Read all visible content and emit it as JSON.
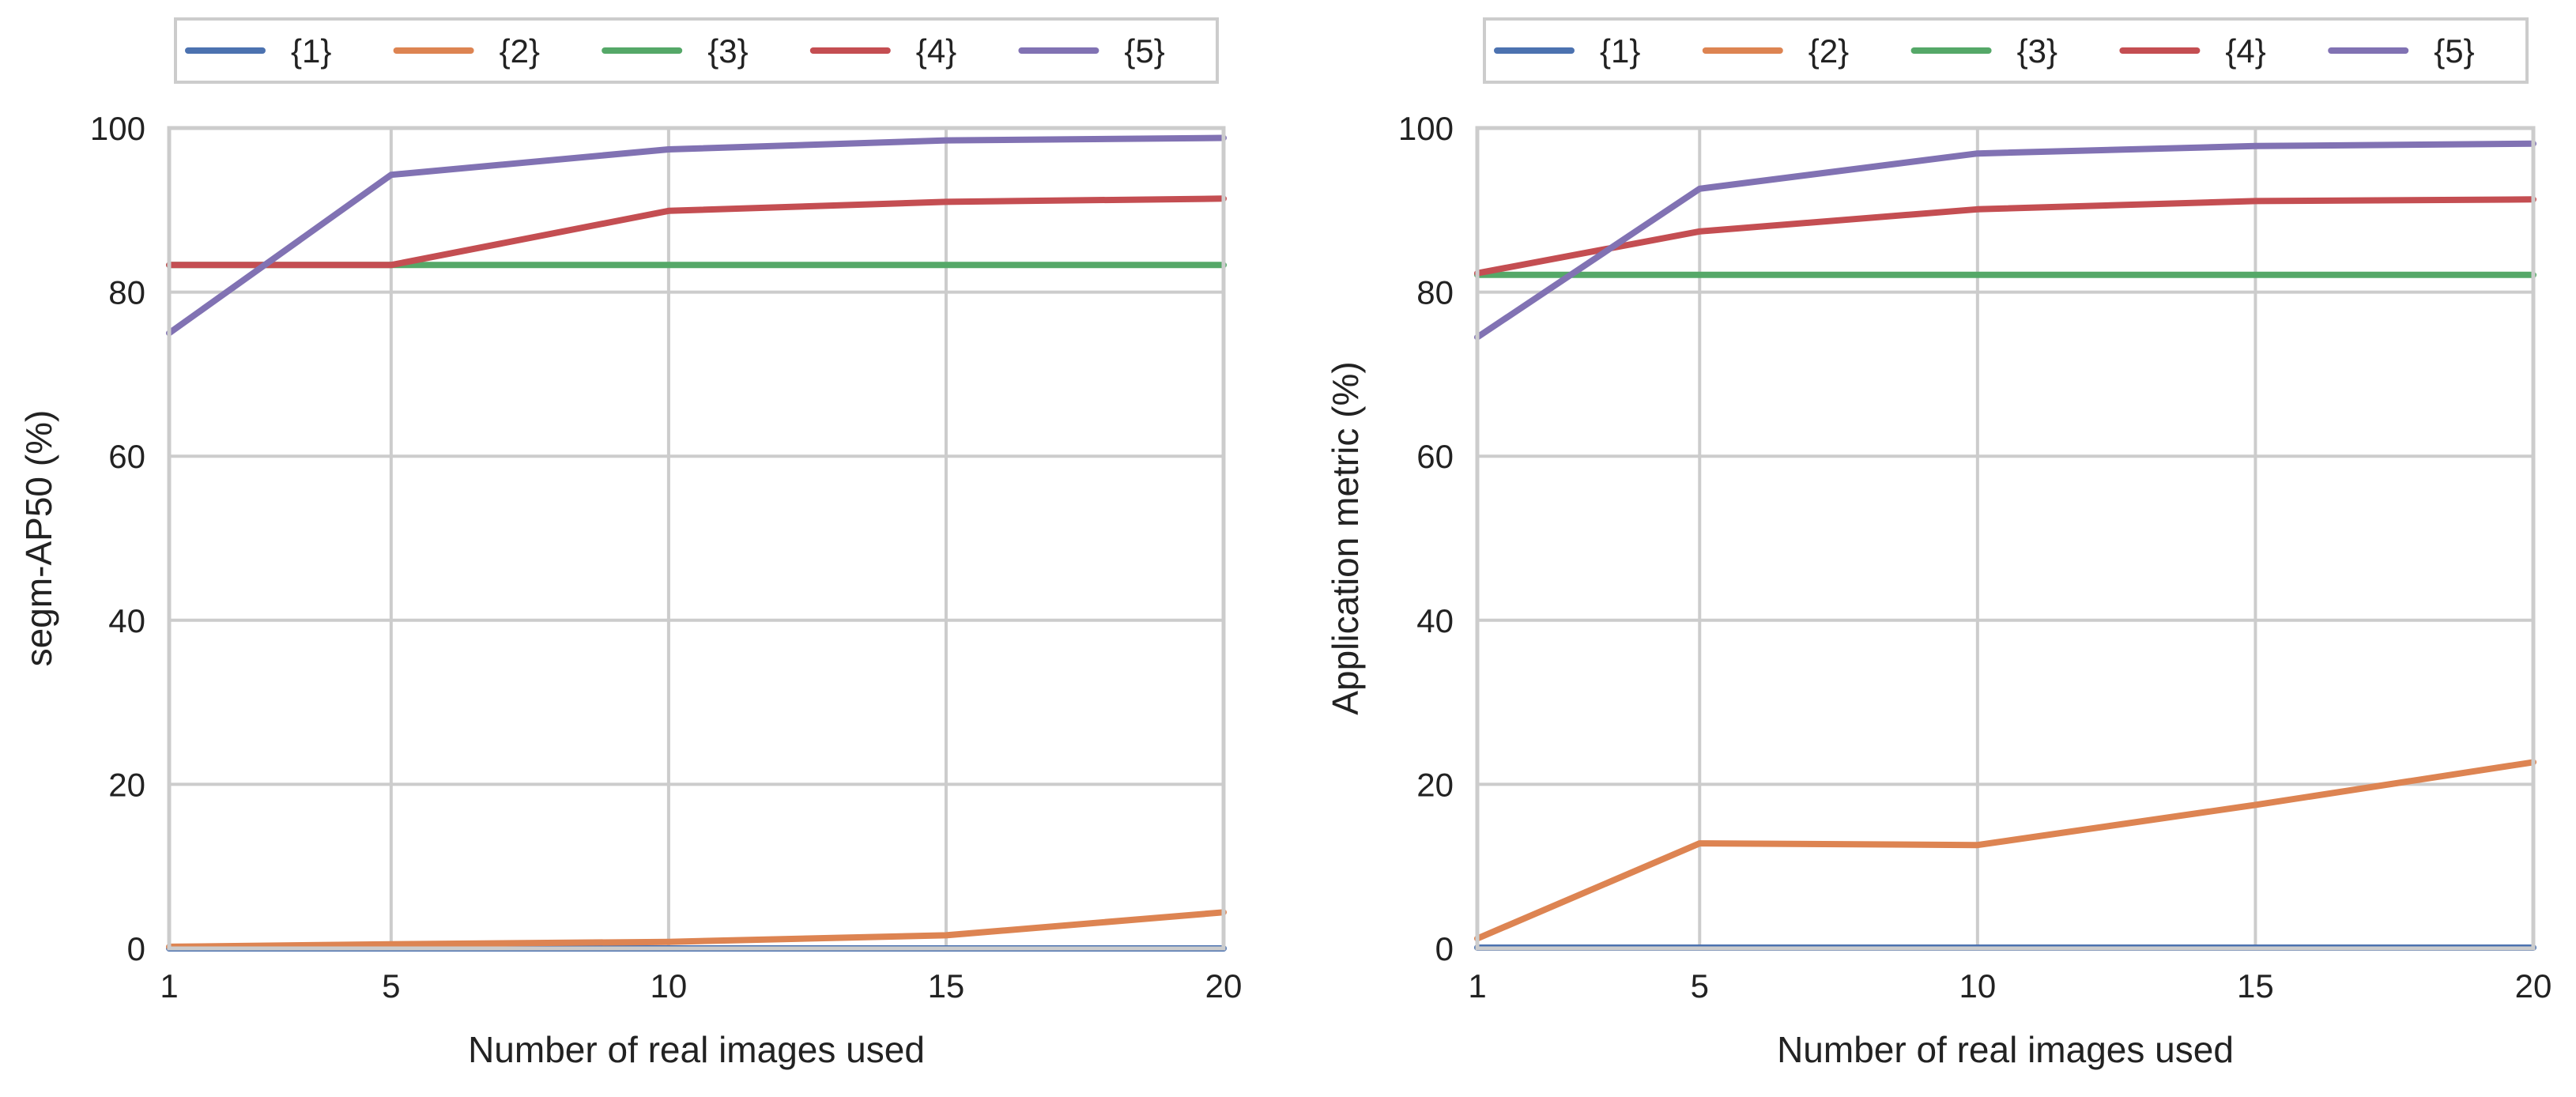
{
  "colors": {
    "series": [
      "#4c72b0",
      "#dd8452",
      "#55a868",
      "#c44e52",
      "#8172b3"
    ],
    "grid": "#cccccc",
    "frame": "#cccccc",
    "text": "#222222"
  },
  "chart_data": [
    {
      "type": "line",
      "title": "",
      "xlabel": "Number of real images used",
      "ylabel": "segm-AP50 (%)",
      "x": [
        1,
        5,
        10,
        15,
        20
      ],
      "xticks": [
        "1",
        "5",
        "10",
        "15",
        "20"
      ],
      "yticks": [
        "0",
        "20",
        "40",
        "60",
        "80",
        "100"
      ],
      "xlim": [
        1,
        20
      ],
      "ylim": [
        0,
        100
      ],
      "grid": true,
      "legend_position": "top",
      "series": [
        {
          "name": "{1}",
          "values": [
            0,
            0,
            0,
            0,
            0
          ]
        },
        {
          "name": "{2}",
          "values": [
            0.2,
            0.5,
            0.8,
            1.6,
            4.4
          ]
        },
        {
          "name": "{3}",
          "values": [
            83.3,
            83.3,
            83.3,
            83.3,
            83.3
          ]
        },
        {
          "name": "{4}",
          "values": [
            83.3,
            83.3,
            89.9,
            91.0,
            91.4
          ]
        },
        {
          "name": "{5}",
          "values": [
            75.0,
            94.3,
            97.4,
            98.5,
            98.8
          ]
        }
      ]
    },
    {
      "type": "line",
      "title": "",
      "xlabel": "Number of real images used",
      "ylabel": "Application metric (%)",
      "x": [
        1,
        5,
        10,
        15,
        20
      ],
      "xticks": [
        "1",
        "5",
        "10",
        "15",
        "20"
      ],
      "yticks": [
        "0",
        "20",
        "40",
        "60",
        "80",
        "100"
      ],
      "xlim": [
        1,
        20
      ],
      "ylim": [
        0,
        100
      ],
      "grid": true,
      "legend_position": "top",
      "series": [
        {
          "name": "{1}",
          "values": [
            0.1,
            0.1,
            0.1,
            0.1,
            0.1
          ]
        },
        {
          "name": "{2}",
          "values": [
            1.2,
            12.8,
            12.6,
            17.5,
            22.7
          ]
        },
        {
          "name": "{3}",
          "values": [
            82.1,
            82.1,
            82.1,
            82.1,
            82.1
          ]
        },
        {
          "name": "{4}",
          "values": [
            82.3,
            87.4,
            90.1,
            91.1,
            91.3
          ]
        },
        {
          "name": "{5}",
          "values": [
            74.5,
            92.6,
            96.9,
            97.8,
            98.1
          ]
        }
      ]
    }
  ]
}
